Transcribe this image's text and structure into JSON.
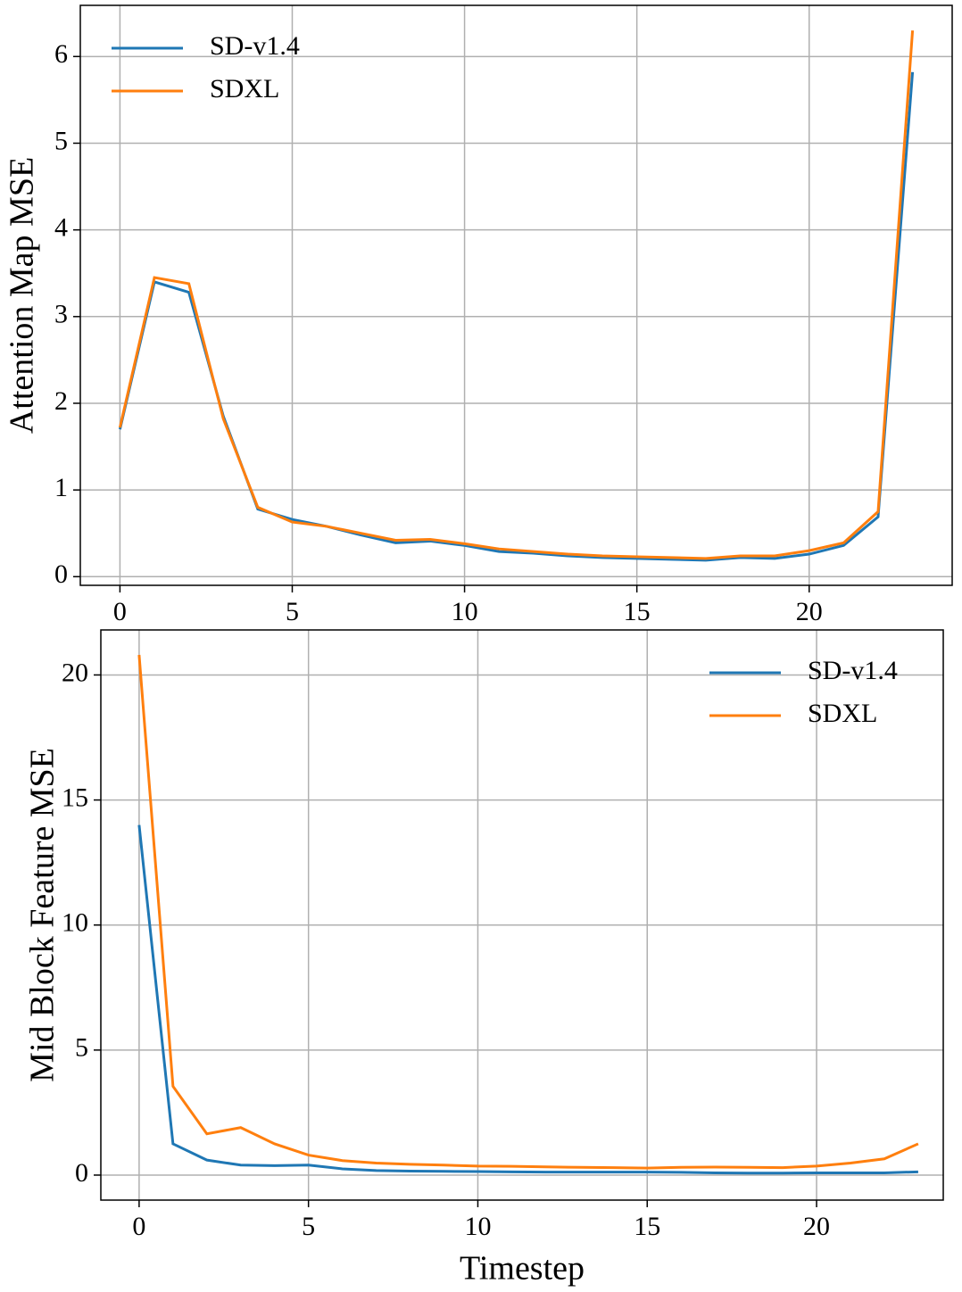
{
  "chart_data": [
    {
      "type": "line",
      "ylabel": "Attention Map MSE",
      "grid": true,
      "legend": "upper left",
      "x": [
        0,
        1,
        2,
        3,
        4,
        5,
        6,
        7,
        8,
        9,
        10,
        11,
        12,
        13,
        14,
        15,
        16,
        17,
        18,
        19,
        20,
        21,
        22,
        23
      ],
      "xlim": [
        -1.15,
        24.15
      ],
      "xticks": [
        0,
        5,
        10,
        15,
        20
      ],
      "ylim": [
        -0.1,
        6.59
      ],
      "yticks": [
        0,
        1,
        2,
        3,
        4,
        5,
        6
      ],
      "series": [
        {
          "name": "SD-v1.4",
          "color": "#1f77b4",
          "values": [
            1.7,
            3.4,
            3.28,
            1.85,
            0.78,
            0.66,
            0.58,
            0.48,
            0.39,
            0.41,
            0.36,
            0.29,
            0.27,
            0.24,
            0.22,
            0.21,
            0.2,
            0.19,
            0.22,
            0.21,
            0.26,
            0.36,
            0.69,
            5.82
          ]
        },
        {
          "name": "SDXL",
          "color": "#ff7f0e",
          "values": [
            1.72,
            3.45,
            3.38,
            1.82,
            0.8,
            0.63,
            0.58,
            0.5,
            0.42,
            0.43,
            0.38,
            0.32,
            0.29,
            0.26,
            0.24,
            0.23,
            0.22,
            0.21,
            0.24,
            0.24,
            0.3,
            0.39,
            0.75,
            6.3
          ]
        }
      ]
    },
    {
      "type": "line",
      "xlabel": "Timestep",
      "ylabel": "Mid Block Feature MSE",
      "grid": true,
      "legend": "upper right",
      "x": [
        0,
        1,
        2,
        3,
        4,
        5,
        6,
        7,
        8,
        9,
        10,
        11,
        12,
        13,
        14,
        15,
        16,
        17,
        18,
        19,
        20,
        21,
        22,
        23
      ],
      "xlim": [
        -1.13,
        23.74
      ],
      "xticks": [
        0,
        5,
        10,
        15,
        20
      ],
      "ylim": [
        -1.0,
        21.8
      ],
      "yticks": [
        0,
        5,
        10,
        15,
        20
      ],
      "series": [
        {
          "name": "SD-v1.4",
          "color": "#1f77b4",
          "values": [
            14.0,
            1.25,
            0.6,
            0.4,
            0.38,
            0.4,
            0.25,
            0.18,
            0.16,
            0.15,
            0.14,
            0.13,
            0.12,
            0.12,
            0.12,
            0.12,
            0.11,
            0.09,
            0.08,
            0.08,
            0.09,
            0.09,
            0.09,
            0.13
          ]
        },
        {
          "name": "SDXL",
          "color": "#ff7f0e",
          "values": [
            20.8,
            3.55,
            1.65,
            1.9,
            1.25,
            0.8,
            0.58,
            0.48,
            0.43,
            0.4,
            0.36,
            0.35,
            0.33,
            0.31,
            0.3,
            0.28,
            0.31,
            0.32,
            0.31,
            0.3,
            0.36,
            0.48,
            0.65,
            1.25
          ]
        }
      ]
    }
  ]
}
